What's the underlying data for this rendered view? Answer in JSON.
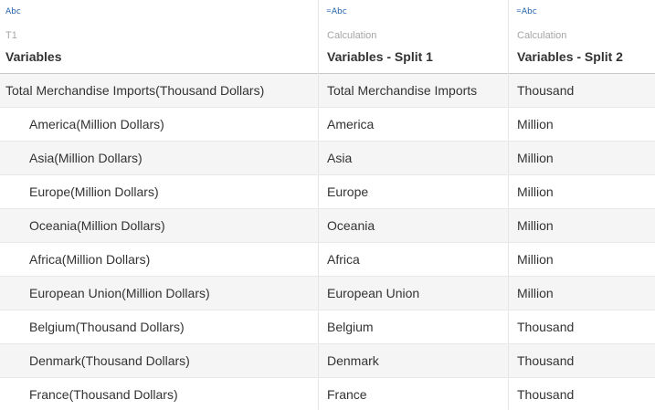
{
  "columns": [
    {
      "type_icon": "Abc",
      "calculated": false,
      "origin": "T1",
      "name": "Variables"
    },
    {
      "type_icon": "Abc",
      "calculated": true,
      "origin": "Calculation",
      "name": "Variables - Split 1"
    },
    {
      "type_icon": "Abc",
      "calculated": true,
      "origin": "Calculation",
      "name": "Variables - Split 2"
    }
  ],
  "rows": [
    {
      "variables": "Total Merchandise Imports(Thousand Dollars)",
      "split1": "Total Merchandise Imports",
      "split2": "Thousand",
      "indent": false
    },
    {
      "variables": "America(Million Dollars)",
      "split1": "America",
      "split2": "Million",
      "indent": true
    },
    {
      "variables": "Asia(Million Dollars)",
      "split1": "Asia",
      "split2": "Million",
      "indent": true
    },
    {
      "variables": "Europe(Million Dollars)",
      "split1": "Europe",
      "split2": "Million",
      "indent": true
    },
    {
      "variables": "Oceania(Million Dollars)",
      "split1": "Oceania",
      "split2": "Million",
      "indent": true
    },
    {
      "variables": "Africa(Million Dollars)",
      "split1": "Africa",
      "split2": "Million",
      "indent": true
    },
    {
      "variables": "European Union(Million Dollars)",
      "split1": "European Union",
      "split2": "Million",
      "indent": true
    },
    {
      "variables": "Belgium(Thousand Dollars)",
      "split1": "Belgium",
      "split2": "Thousand",
      "indent": true
    },
    {
      "variables": "Denmark(Thousand Dollars)",
      "split1": "Denmark",
      "split2": "Thousand",
      "indent": true
    },
    {
      "variables": "France(Thousand Dollars)",
      "split1": "France",
      "split2": "Thousand",
      "indent": true
    }
  ],
  "colors": {
    "type_icon": "#1f5fa8",
    "origin_text": "#a5a5a5",
    "alt_row": "#f5f5f5",
    "header_border": "#c8c8c8"
  }
}
